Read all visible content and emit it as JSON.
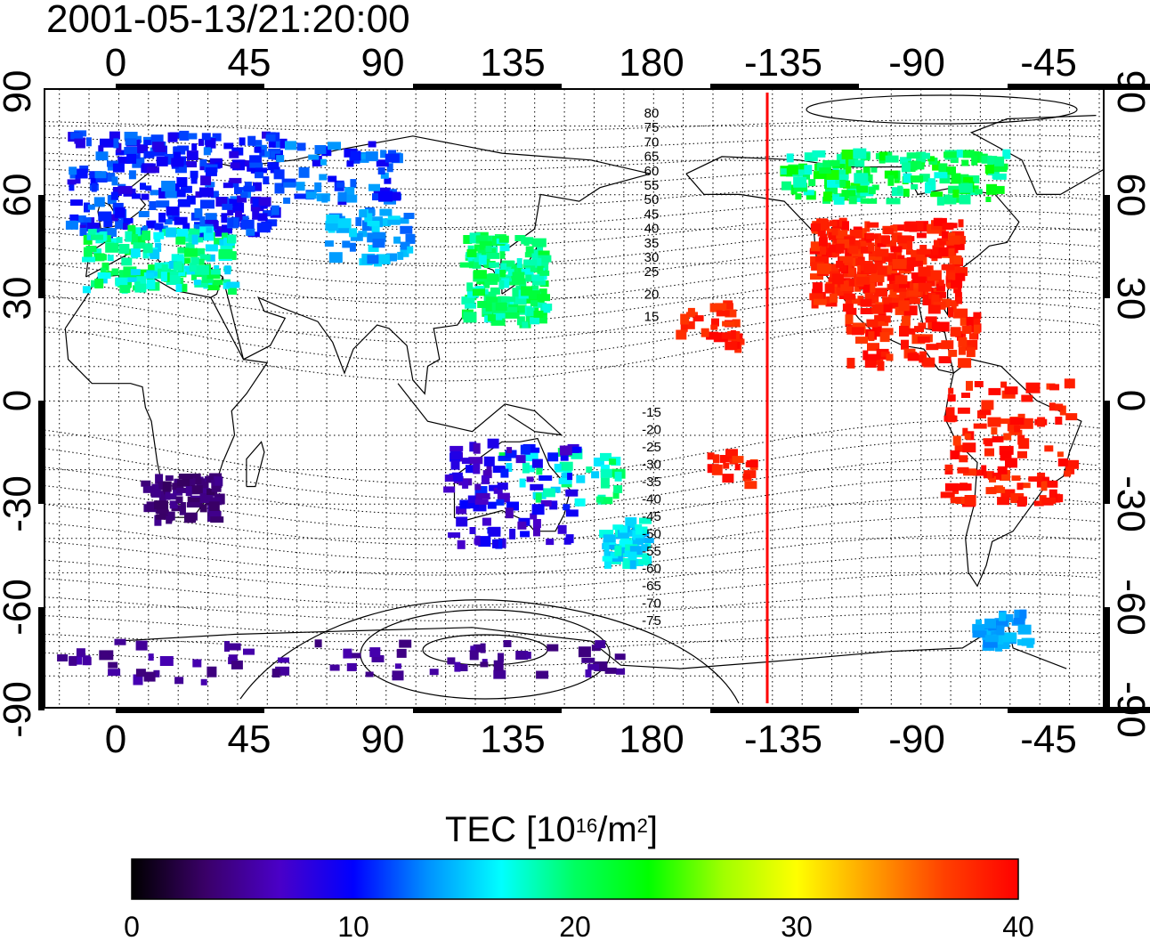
{
  "timestamp": "2001-05-13/21:20:00",
  "map": {
    "top_axis_labels": [
      "0",
      "45",
      "90",
      "135",
      "180",
      "-135",
      "-90",
      "-45"
    ],
    "bottom_axis_labels": [
      "0",
      "45",
      "90",
      "135",
      "180",
      "-135",
      "-90",
      "-45"
    ],
    "left_axis_labels": [
      "90",
      "60",
      "30",
      "0",
      "-30",
      "-60",
      "-90"
    ],
    "right_axis_labels": [
      "90",
      "60",
      "30",
      "0",
      "-30",
      "-60",
      "-90"
    ],
    "contour_labels_north": [
      "80",
      "75",
      "70",
      "65",
      "60",
      "55",
      "50",
      "45",
      "40",
      "35",
      "30",
      "25",
      "20",
      "15"
    ],
    "contour_labels_south": [
      "-15",
      "-20",
      "-25",
      "-30",
      "-35",
      "-40",
      "-45",
      "-50",
      "-55",
      "-60",
      "-65",
      "-70",
      "-75"
    ],
    "terminator_color": "#ff0000",
    "grid": true
  },
  "colorbar": {
    "title_prefix": "TEC  [10",
    "title_exp1": "16",
    "title_mid": "/m",
    "title_exp2": "2",
    "title_suffix": "]",
    "min": 0,
    "max": 40,
    "tick_labels": [
      "0",
      "10",
      "20",
      "30",
      "40"
    ],
    "colors": [
      "#000000",
      "#3a0068",
      "#4a00c8",
      "#0000ff",
      "#0090ff",
      "#00ffff",
      "#00ff60",
      "#00ff00",
      "#a0ff00",
      "#ffff00",
      "#ffa000",
      "#ff4000",
      "#ff0000"
    ]
  }
}
